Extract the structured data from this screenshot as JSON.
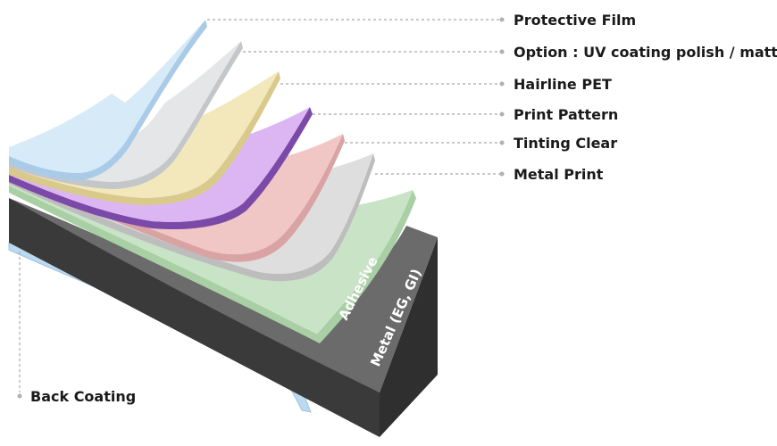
{
  "diagram": {
    "callouts": [
      {
        "id": "protective-film",
        "label": "Protective Film"
      },
      {
        "id": "uv-coating",
        "label": "Option : UV coating polish / matt"
      },
      {
        "id": "hairline-pet",
        "label": "Hairline PET"
      },
      {
        "id": "print-pattern",
        "label": "Print Pattern"
      },
      {
        "id": "tinting-clear",
        "label": "Tinting Clear"
      },
      {
        "id": "metal-print",
        "label": "Metal Print"
      },
      {
        "id": "back-coating",
        "label": "Back Coating"
      }
    ],
    "inline_labels": {
      "adhesive": "Adhesive",
      "metal": "Metal (EG, GI)"
    },
    "colors": {
      "protective_film": "#d6eaf8",
      "uv_coating": "#e4e6e8",
      "hairline_pet": "#f2e8bc",
      "print_pattern": "#dcb6f2",
      "tinting_clear": "#f1c7c6",
      "metal_print": "#dedede",
      "adhesive": "#c9e3c6",
      "metal_top": "#6b6b6b",
      "metal_side": "#3a3a3a",
      "back_coating": "#bcd9ef"
    }
  }
}
